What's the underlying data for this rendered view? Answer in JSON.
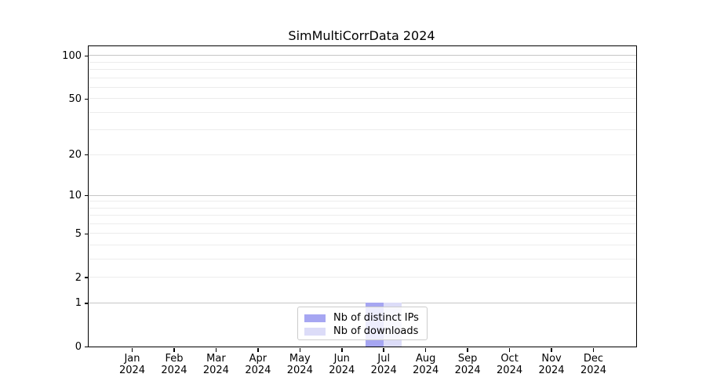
{
  "title": "SimMultiCorrData 2024",
  "chart_data": {
    "type": "bar",
    "title": "SimMultiCorrData 2024",
    "xlabel": "",
    "ylabel": "",
    "categories": [
      {
        "month": "Jan",
        "year": "2024"
      },
      {
        "month": "Feb",
        "year": "2024"
      },
      {
        "month": "Mar",
        "year": "2024"
      },
      {
        "month": "Apr",
        "year": "2024"
      },
      {
        "month": "May",
        "year": "2024"
      },
      {
        "month": "Jun",
        "year": "2024"
      },
      {
        "month": "Jul",
        "year": "2024"
      },
      {
        "month": "Aug",
        "year": "2024"
      },
      {
        "month": "Sep",
        "year": "2024"
      },
      {
        "month": "Oct",
        "year": "2024"
      },
      {
        "month": "Nov",
        "year": "2024"
      },
      {
        "month": "Dec",
        "year": "2024"
      }
    ],
    "series": [
      {
        "name": "Nb of distinct IPs",
        "color": "#a6a6f2",
        "values": [
          0,
          0,
          0,
          0,
          0,
          0,
          1,
          0,
          0,
          0,
          0,
          0
        ]
      },
      {
        "name": "Nb of downloads",
        "color": "#dcdcf8",
        "values": [
          0,
          0,
          0,
          0,
          0,
          0,
          1,
          0,
          0,
          0,
          0,
          0
        ]
      }
    ],
    "yscale": "log1p",
    "ylim": [
      0,
      116
    ],
    "yticks": [
      0,
      1,
      2,
      5,
      10,
      20,
      50,
      100
    ],
    "grid": {
      "on": true,
      "major": [
        1,
        10,
        100
      ],
      "minor": [
        2,
        3,
        4,
        5,
        6,
        7,
        8,
        9,
        20,
        30,
        40,
        50,
        60,
        70,
        80,
        90
      ]
    },
    "legend": {
      "position": "lower center",
      "entries": [
        "Nb of distinct IPs",
        "Nb of downloads"
      ]
    },
    "colors": {
      "major_grid": "#c6c6c6",
      "minor_grid": "#ececec",
      "spine": "#000000",
      "background": "#ffffff"
    }
  }
}
